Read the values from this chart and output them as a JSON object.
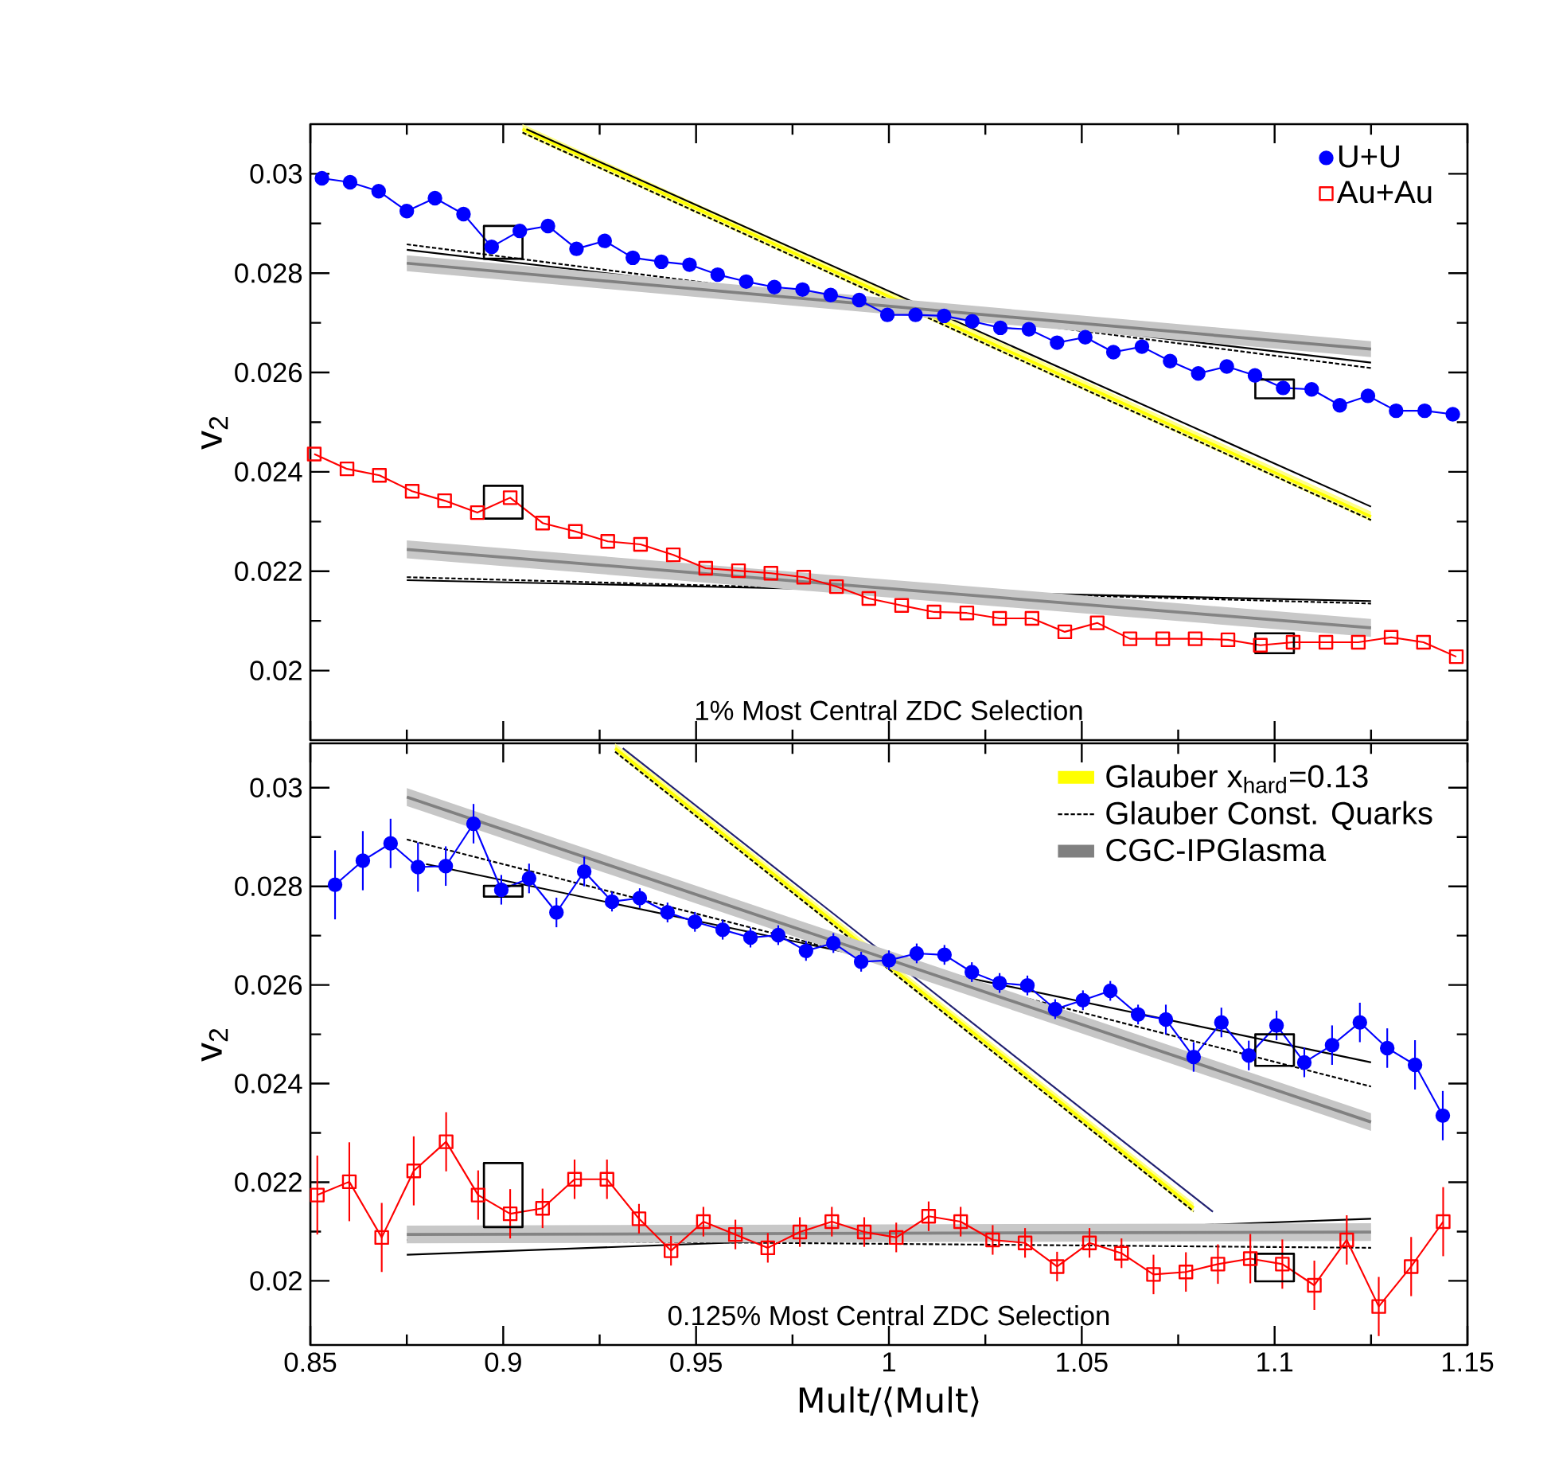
{
  "chart_data": [
    {
      "type": "line",
      "ylabel": "v$_{2}$",
      "xlim": [
        0.85,
        1.15
      ],
      "ylim": [
        0.0186,
        0.031
      ],
      "xticks": [
        0.85,
        0.9,
        0.95,
        1,
        1.05,
        1.1,
        1.15
      ],
      "yticks": [
        0.02,
        0.022,
        0.024,
        0.026,
        0.028,
        0.03
      ],
      "tick_labels": "y",
      "legend": "top right",
      "annotations": [
        "1% Most Central ZDC Selection"
      ],
      "series": [
        {
          "color": "#ffff00",
          "line_style": "solid",
          "x": [
            0.905,
            1.125
          ],
          "values": [
            0.0309,
            0.0231
          ],
          "lower": [
            0.0308,
            0.023
          ],
          "upper": [
            0.031,
            0.0232
          ]
        },
        {
          "color": "#000000",
          "line_style": "dashed",
          "x": [
            0.905,
            1.125
          ],
          "values": [
            0.03083,
            0.02303
          ]
        },
        {
          "color": "#000000",
          "line_style": "solid",
          "x": [
            0.906,
            1.125
          ],
          "values": [
            0.0309,
            0.0233
          ]
        },
        {
          "color": "#000000",
          "line_style": "dashed",
          "x": [
            0.875,
            1.125
          ],
          "values": [
            0.02858,
            0.02609
          ]
        },
        {
          "color": "#000000",
          "line_style": "solid",
          "x": [
            0.875,
            1.125
          ],
          "values": [
            0.02847,
            0.0262
          ]
        },
        {
          "color": "#808080",
          "line_style": "solid",
          "x": [
            0.875,
            1.125
          ],
          "values": [
            0.0282,
            0.02647
          ],
          "lower": [
            0.02804,
            0.02631
          ],
          "upper": [
            0.02836,
            0.02663
          ]
        },
        {
          "color": "#000000",
          "line_style": "dashed",
          "x": [
            0.875,
            1.125
          ],
          "values": [
            0.02188,
            0.02135
          ]
        },
        {
          "color": "#000000",
          "line_style": "solid",
          "x": [
            0.875,
            1.125
          ],
          "values": [
            0.02182,
            0.0214
          ]
        },
        {
          "color": "#848484",
          "line_style": "solid",
          "x": [
            0.875,
            1.125
          ],
          "values": [
            0.02244,
            0.02086
          ],
          "lower": [
            0.02226,
            0.02068
          ],
          "upper": [
            0.02262,
            0.02104
          ]
        },
        {
          "name": "U+U",
          "color": "#0000ff",
          "marker": "circle",
          "line_style": "solid",
          "x": [
            0.853,
            0.8603,
            0.8677,
            0.875,
            0.8823,
            0.8897,
            0.897,
            0.9043,
            0.9116,
            0.919,
            0.9263,
            0.9336,
            0.941,
            0.9483,
            0.9556,
            0.963,
            0.9703,
            0.9776,
            0.9849,
            0.9923,
            0.9996,
            1.0069,
            1.0143,
            1.0216,
            1.0289,
            1.0363,
            1.0436,
            1.0509,
            1.0582,
            1.0656,
            1.0729,
            1.0802,
            1.0876,
            1.0949,
            1.1022,
            1.1096,
            1.1169,
            1.1242,
            1.1315,
            1.1389,
            1.1462
          ],
          "values": [
            0.02991,
            0.02983,
            0.02965,
            0.02925,
            0.02951,
            0.02919,
            0.02853,
            0.02885,
            0.02895,
            0.02849,
            0.02865,
            0.02831,
            0.02823,
            0.02817,
            0.02797,
            0.02783,
            0.02772,
            0.02767,
            0.02756,
            0.02746,
            0.02716,
            0.02716,
            0.02714,
            0.02703,
            0.0269,
            0.02687,
            0.0266,
            0.02671,
            0.02641,
            0.02652,
            0.02623,
            0.02598,
            0.02612,
            0.02594,
            0.02569,
            0.02566,
            0.02534,
            0.02553,
            0.02523,
            0.02523,
            0.02516
          ]
        },
        {
          "name": "Au+Au",
          "color": "#ff0000",
          "marker": "square",
          "line_style": "solid",
          "x": [
            0.851,
            0.8595,
            0.8679,
            0.8764,
            0.8848,
            0.8933,
            0.9018,
            0.9102,
            0.9187,
            0.9271,
            0.9356,
            0.9441,
            0.9525,
            0.961,
            0.9694,
            0.9779,
            0.9864,
            0.9948,
            1.0033,
            1.0117,
            1.0202,
            1.0287,
            1.0371,
            1.0456,
            1.054,
            1.0625,
            1.071,
            1.0794,
            1.0879,
            1.0963,
            1.1048,
            1.1133,
            1.1217,
            1.1302,
            1.1386,
            1.1471
          ],
          "values": [
            0.02436,
            0.02406,
            0.02393,
            0.02361,
            0.02342,
            0.02318,
            0.02348,
            0.02297,
            0.0228,
            0.0226,
            0.02254,
            0.02233,
            0.02206,
            0.02201,
            0.02196,
            0.02188,
            0.02169,
            0.02145,
            0.02131,
            0.02118,
            0.02116,
            0.02105,
            0.02105,
            0.02078,
            0.02096,
            0.02064,
            0.02064,
            0.02064,
            0.02062,
            0.02051,
            0.02057,
            0.02057,
            0.02057,
            0.02067,
            0.02057,
            0.02028
          ]
        },
        {
          "type": "bar",
          "color": "#000000",
          "x": [
            0.9,
            1.1
          ],
          "base": [
            0.02829,
            0.02548
          ],
          "values": [
            0.00066,
            0.00038
          ]
        },
        {
          "type": "bar",
          "color": "#000000",
          "x": [
            0.9,
            1.1
          ],
          "base": [
            0.02306,
            0.02035
          ],
          "values": [
            0.00066,
            0.0004
          ]
        }
      ]
    },
    {
      "type": "line",
      "xlabel": "Mult/⟨Mult⟩",
      "ylabel": "v$_{2}$",
      "xlim": [
        0.85,
        1.15
      ],
      "ylim": [
        0.0187,
        0.0309
      ],
      "xticks": [
        0.85,
        0.9,
        0.95,
        1,
        1.05,
        1.1,
        1.15
      ],
      "yticks": [
        0.02,
        0.022,
        0.024,
        0.026,
        0.028,
        0.03
      ],
      "legend": "top right",
      "annotations": [
        "0.125% Most Central ZDC Selection"
      ],
      "series": [
        {
          "name": "Glauber x$_{hard}$=0.13",
          "color": "#ffff00",
          "line_style": "solid",
          "x": [
            0.929,
            1.079
          ],
          "values": [
            0.0308,
            0.02148
          ],
          "lower": [
            0.0307,
            0.02138
          ],
          "upper": [
            0.0309,
            0.02158
          ]
        },
        {
          "color": "#000000",
          "line_style": "dashed",
          "x": [
            0.929,
            1.079
          ],
          "values": [
            0.03073,
            0.02141
          ]
        },
        {
          "color": "#202070",
          "line_style": "solid",
          "x": [
            0.931,
            1.084
          ],
          "values": [
            0.0308,
            0.0214
          ]
        },
        {
          "name": "Glauber Const. Quarks",
          "color": "#000000",
          "line_style": "dashed",
          "x": [
            0.875,
            1.125
          ],
          "values": [
            0.02895,
            0.02394
          ]
        },
        {
          "color": "#000000",
          "line_style": "solid",
          "x": [
            0.88,
            1.125
          ],
          "values": [
            0.02845,
            0.02443
          ]
        },
        {
          "name": "CGC-IPGlasma",
          "color": "#808080",
          "line_style": "solid",
          "x": [
            0.875,
            1.125
          ],
          "values": [
            0.02981,
            0.02322
          ],
          "lower": [
            0.02963,
            0.02304
          ],
          "upper": [
            0.02999,
            0.0234
          ]
        },
        {
          "color": "#000000",
          "line_style": "dashed",
          "x": [
            0.875,
            1.125
          ],
          "values": [
            0.02083,
            0.02067
          ]
        },
        {
          "color": "#000000",
          "line_style": "solid",
          "x": [
            0.875,
            1.125
          ],
          "values": [
            0.02053,
            0.02126
          ]
        },
        {
          "color": "#848484",
          "line_style": "solid",
          "x": [
            0.875,
            1.125
          ],
          "values": [
            0.02094,
            0.02099
          ],
          "lower": [
            0.02076,
            0.02081
          ],
          "upper": [
            0.02112,
            0.02117
          ]
        },
        {
          "color": "#0000ff",
          "marker": "circle",
          "line_style": "solid",
          "x": [
            0.8564,
            0.8636,
            0.8708,
            0.8779,
            0.8851,
            0.8923,
            0.8995,
            0.9067,
            0.9138,
            0.921,
            0.9282,
            0.9354,
            0.9426,
            0.9497,
            0.9569,
            0.9641,
            0.9713,
            0.9785,
            0.9856,
            0.9928,
            1.0,
            1.0072,
            1.0144,
            1.0215,
            1.0287,
            1.0359,
            1.0431,
            1.0503,
            1.0574,
            1.0646,
            1.0718,
            1.079,
            1.0862,
            1.0933,
            1.1005,
            1.1077,
            1.1149,
            1.1221,
            1.1292,
            1.1364,
            1.1436
          ],
          "values": [
            0.02803,
            0.02852,
            0.02887,
            0.02839,
            0.02841,
            0.02927,
            0.02793,
            0.02816,
            0.02747,
            0.0283,
            0.02769,
            0.02776,
            0.02747,
            0.02728,
            0.02712,
            0.02696,
            0.02701,
            0.02669,
            0.02685,
            0.02647,
            0.0265,
            0.02664,
            0.02661,
            0.02626,
            0.02604,
            0.02599,
            0.02551,
            0.02569,
            0.02588,
            0.0254,
            0.0253,
            0.02454,
            0.02524,
            0.02457,
            0.02518,
            0.02443,
            0.02478,
            0.02524,
            0.02472,
            0.02438,
            0.02335
          ],
          "errors": [
            0.0007,
            0.0006,
            0.0005,
            0.0005,
            0.0004,
            0.0004,
            0.0003,
            0.0003,
            0.0003,
            0.0003,
            0.0002,
            0.0002,
            0.0002,
            0.0002,
            0.0002,
            0.0002,
            0.0002,
            0.0002,
            0.0002,
            0.0002,
            0.0002,
            0.0002,
            0.0002,
            0.0002,
            0.0002,
            0.0002,
            0.0002,
            0.0002,
            0.0002,
            0.0002,
            0.0003,
            0.0003,
            0.0003,
            0.0003,
            0.0003,
            0.0003,
            0.0004,
            0.0004,
            0.0004,
            0.0005,
            0.0005
          ]
        },
        {
          "color": "#ff0000",
          "marker": "square",
          "line_style": "solid",
          "x": [
            0.8518,
            0.8601,
            0.8685,
            0.8768,
            0.8852,
            0.8935,
            0.9018,
            0.9102,
            0.9185,
            0.9269,
            0.9352,
            0.9435,
            0.9519,
            0.9602,
            0.9686,
            0.9769,
            0.9852,
            0.9936,
            1.0019,
            1.0103,
            1.0186,
            1.0269,
            1.0353,
            1.0436,
            1.052,
            1.0603,
            1.0686,
            1.077,
            1.0853,
            1.0937,
            1.102,
            1.1103,
            1.1187,
            1.127,
            1.1354,
            1.1437
          ],
          "values": [
            0.02174,
            0.02201,
            0.02088,
            0.02223,
            0.02282,
            0.02174,
            0.02136,
            0.02147,
            0.02206,
            0.02206,
            0.02126,
            0.02061,
            0.0212,
            0.02094,
            0.02067,
            0.02099,
            0.0212,
            0.02099,
            0.02088,
            0.02131,
            0.0212,
            0.02083,
            0.02077,
            0.02029,
            0.02077,
            0.02056,
            0.02013,
            0.02018,
            0.02034,
            0.02045,
            0.02034,
            0.01991,
            0.02083,
            0.01948,
            0.02029,
            0.0212
          ],
          "errors": [
            0.0008,
            0.0008,
            0.0007,
            0.0007,
            0.0006,
            0.0005,
            0.0005,
            0.0004,
            0.0004,
            0.0004,
            0.0003,
            0.0003,
            0.0003,
            0.0003,
            0.0003,
            0.0003,
            0.0003,
            0.0003,
            0.0003,
            0.0003,
            0.0003,
            0.0003,
            0.0003,
            0.0003,
            0.0003,
            0.0003,
            0.0004,
            0.0004,
            0.0004,
            0.0005,
            0.0005,
            0.0005,
            0.0005,
            0.0006,
            0.0006,
            0.0007
          ]
        },
        {
          "type": "bar",
          "color": "#000000",
          "x": [
            0.9,
            1.1
          ],
          "base": [
            0.02779,
            0.02436
          ],
          "values": [
            0.00022,
            0.00064
          ]
        },
        {
          "type": "bar",
          "color": "#000000",
          "x": [
            0.9,
            1.1
          ],
          "base": [
            0.02109,
            0.01999
          ],
          "values": [
            0.0013,
            0.00056
          ]
        }
      ]
    }
  ]
}
